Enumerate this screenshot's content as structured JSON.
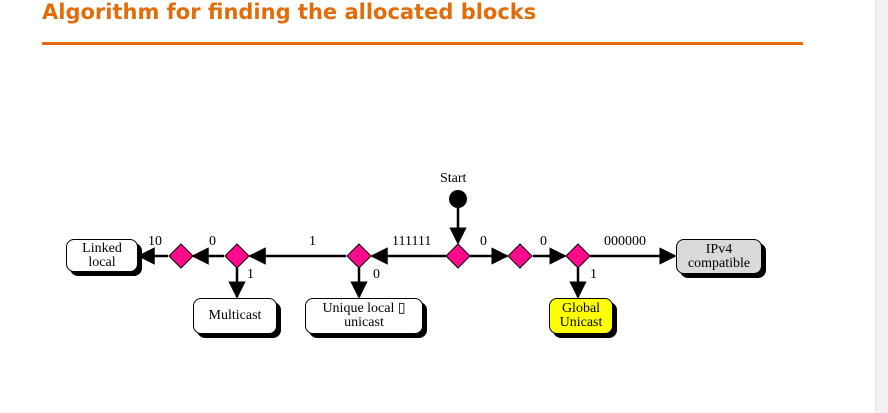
{
  "slide": {
    "title": "Algorithm for finding the allocated blocks"
  },
  "colors": {
    "title": "#e36c0a",
    "rule": "#e36c0a",
    "decision_fill": "#ff0a8c",
    "global_unicast_fill": "#ffff00",
    "ipv4_fill": "#d9d9d9",
    "box_fill": "#ffffff",
    "line": "#000000"
  },
  "diagram": {
    "start_label": "Start",
    "edge_labels": {
      "prefix_111111": "111111",
      "bit_1_left": "1",
      "bit_0_left": "0",
      "bit_10": "10",
      "bit_1_multicast": "1",
      "bit_0_unique_local": "0",
      "bit_0_right_a": "0",
      "bit_0_right_b": "0",
      "prefix_000000": "000000",
      "bit_1_global": "1"
    },
    "outcomes": {
      "linked_local": [
        "Linked",
        "local"
      ],
      "multicast": "Multicast",
      "unique_local": [
        "Unique local ▯",
        "unicast"
      ],
      "global_unicast": [
        "Global",
        "Unicast"
      ],
      "ipv4_compatible": [
        "IPv4",
        "compatible"
      ]
    }
  }
}
